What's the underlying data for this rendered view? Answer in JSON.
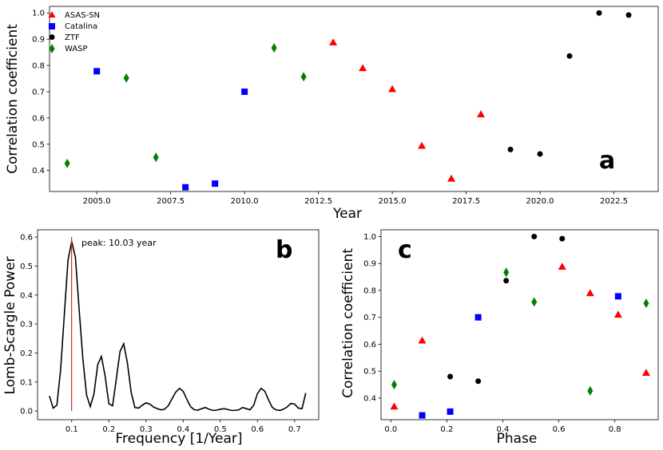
{
  "chart_data": [
    {
      "panel": "a",
      "type": "scatter",
      "xlabel": "Year",
      "ylabel": "Correlation coefficient",
      "xlim": [
        2003.4,
        2024.0
      ],
      "ylim": [
        0.32,
        1.025
      ],
      "xticks": [
        2005.0,
        2007.5,
        2010.0,
        2012.5,
        2015.0,
        2017.5,
        2020.0,
        2022.5
      ],
      "xtick_labels": [
        "2005.0",
        "2007.5",
        "2010.0",
        "2012.5",
        "2015.0",
        "2017.5",
        "2020.0",
        "2022.5"
      ],
      "yticks": [
        0.4,
        0.5,
        0.6,
        0.7,
        0.8,
        0.9,
        1.0
      ],
      "ytick_labels": [
        "0.4",
        "0.5",
        "0.6",
        "0.7",
        "0.8",
        "0.9",
        "1.0"
      ],
      "legend_position": "top-left",
      "series": [
        {
          "name": "ASAS-SN",
          "marker": "triangle",
          "color": "#ff0000",
          "x": [
            2013,
            2014,
            2015,
            2016,
            2017,
            2018
          ],
          "y": [
            0.888,
            0.79,
            0.71,
            0.494,
            0.369,
            0.614
          ]
        },
        {
          "name": "Catalina",
          "marker": "square",
          "color": "#0000ff",
          "x": [
            2005,
            2008,
            2009,
            2010
          ],
          "y": [
            0.778,
            0.336,
            0.35,
            0.7
          ]
        },
        {
          "name": "ZTF",
          "marker": "circle",
          "color": "#000000",
          "x": [
            2019,
            2020,
            2021,
            2022,
            2023
          ],
          "y": [
            0.48,
            0.463,
            0.836,
            1.0,
            0.992
          ]
        },
        {
          "name": "WASP",
          "marker": "diamond",
          "color": "#008000",
          "x": [
            2004,
            2006,
            2007,
            2011,
            2012
          ],
          "y": [
            0.427,
            0.752,
            0.45,
            0.867,
            0.757
          ]
        }
      ]
    },
    {
      "panel": "b",
      "type": "line",
      "xlabel": "Frequency [1/Year]",
      "ylabel": "Lomb-Scargle Power",
      "xlim": [
        0.008,
        0.765
      ],
      "ylim": [
        -0.03,
        0.625
      ],
      "xticks": [
        0.1,
        0.2,
        0.3,
        0.4,
        0.5,
        0.6,
        0.7
      ],
      "xtick_labels": [
        "0.1",
        "0.2",
        "0.3",
        "0.4",
        "0.5",
        "0.6",
        "0.7"
      ],
      "yticks": [
        0.0,
        0.1,
        0.2,
        0.3,
        0.4,
        0.5,
        0.6
      ],
      "ytick_labels": [
        "0.0",
        "0.1",
        "0.2",
        "0.3",
        "0.4",
        "0.5",
        "0.6"
      ],
      "peak_frequency": 0.0997,
      "peak_label": "peak: 10.03 year",
      "series": [
        {
          "name": "power",
          "color": "#000000",
          "x": [
            0.04,
            0.05,
            0.06,
            0.07,
            0.08,
            0.09,
            0.1,
            0.11,
            0.12,
            0.13,
            0.14,
            0.15,
            0.16,
            0.17,
            0.18,
            0.19,
            0.2,
            0.21,
            0.22,
            0.23,
            0.24,
            0.25,
            0.26,
            0.27,
            0.28,
            0.29,
            0.3,
            0.31,
            0.32,
            0.33,
            0.34,
            0.35,
            0.36,
            0.37,
            0.38,
            0.39,
            0.4,
            0.41,
            0.42,
            0.43,
            0.44,
            0.45,
            0.46,
            0.47,
            0.48,
            0.49,
            0.5,
            0.51,
            0.52,
            0.53,
            0.54,
            0.55,
            0.56,
            0.57,
            0.58,
            0.59,
            0.6,
            0.61,
            0.62,
            0.63,
            0.64,
            0.65,
            0.66,
            0.67,
            0.68,
            0.69,
            0.7,
            0.71,
            0.72,
            0.73
          ],
          "y": [
            0.052,
            0.01,
            0.02,
            0.14,
            0.33,
            0.52,
            0.585,
            0.53,
            0.35,
            0.18,
            0.055,
            0.015,
            0.06,
            0.16,
            0.188,
            0.12,
            0.025,
            0.018,
            0.11,
            0.205,
            0.232,
            0.165,
            0.065,
            0.012,
            0.01,
            0.02,
            0.028,
            0.024,
            0.014,
            0.008,
            0.004,
            0.006,
            0.018,
            0.042,
            0.065,
            0.078,
            0.068,
            0.04,
            0.015,
            0.004,
            0.003,
            0.008,
            0.012,
            0.006,
            0.002,
            0.003,
            0.006,
            0.008,
            0.005,
            0.002,
            0.002,
            0.004,
            0.012,
            0.008,
            0.004,
            0.02,
            0.06,
            0.078,
            0.068,
            0.038,
            0.012,
            0.004,
            0.002,
            0.006,
            0.014,
            0.026,
            0.024,
            0.01,
            0.008,
            0.062
          ]
        }
      ]
    },
    {
      "panel": "c",
      "type": "scatter",
      "xlabel": "Phase",
      "ylabel": "Correlation coefficient",
      "xlim": [
        -0.035,
        0.955
      ],
      "ylim": [
        0.32,
        1.025
      ],
      "xticks": [
        0.0,
        0.2,
        0.4,
        0.6,
        0.8
      ],
      "xtick_labels": [
        "0.0",
        "0.2",
        "0.4",
        "0.6",
        "0.8"
      ],
      "yticks": [
        0.4,
        0.5,
        0.6,
        0.7,
        0.8,
        0.9,
        1.0
      ],
      "ytick_labels": [
        "0.4",
        "0.5",
        "0.6",
        "0.7",
        "0.8",
        "0.9",
        "1.0"
      ],
      "series": [
        {
          "name": "ASAS-SN",
          "marker": "triangle",
          "color": "#ff0000",
          "x": [
            0.012,
            0.112,
            0.612,
            0.712,
            0.812,
            0.912
          ],
          "y": [
            0.369,
            0.614,
            0.888,
            0.79,
            0.71,
            0.494
          ]
        },
        {
          "name": "Catalina",
          "marker": "square",
          "color": "#0000ff",
          "x": [
            0.112,
            0.212,
            0.312,
            0.812
          ],
          "y": [
            0.336,
            0.35,
            0.7,
            0.778
          ]
        },
        {
          "name": "ZTF",
          "marker": "circle",
          "color": "#000000",
          "x": [
            0.212,
            0.312,
            0.412,
            0.512,
            0.612
          ],
          "y": [
            0.48,
            0.463,
            0.836,
            1.0,
            0.992
          ]
        },
        {
          "name": "WASP",
          "marker": "diamond",
          "color": "#008000",
          "x": [
            0.012,
            0.412,
            0.512,
            0.712,
            0.912
          ],
          "y": [
            0.45,
            0.867,
            0.757,
            0.427,
            0.752
          ]
        }
      ]
    }
  ],
  "panel_labels": {
    "a": "a",
    "b": "b",
    "c": "c"
  },
  "legend": {
    "entries": [
      "ASAS-SN",
      "Catalina",
      "ZTF",
      "WASP"
    ]
  }
}
